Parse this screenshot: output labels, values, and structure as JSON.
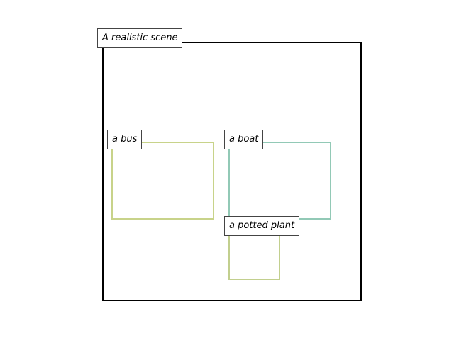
{
  "scene": {
    "title": "A realistic scene"
  },
  "objects": [
    {
      "label": "a bus",
      "color": "#c8d38a"
    },
    {
      "label": "a boat",
      "color": "#92c9b6"
    },
    {
      "label": "a potted plant",
      "color": "#c2cf8e"
    }
  ]
}
